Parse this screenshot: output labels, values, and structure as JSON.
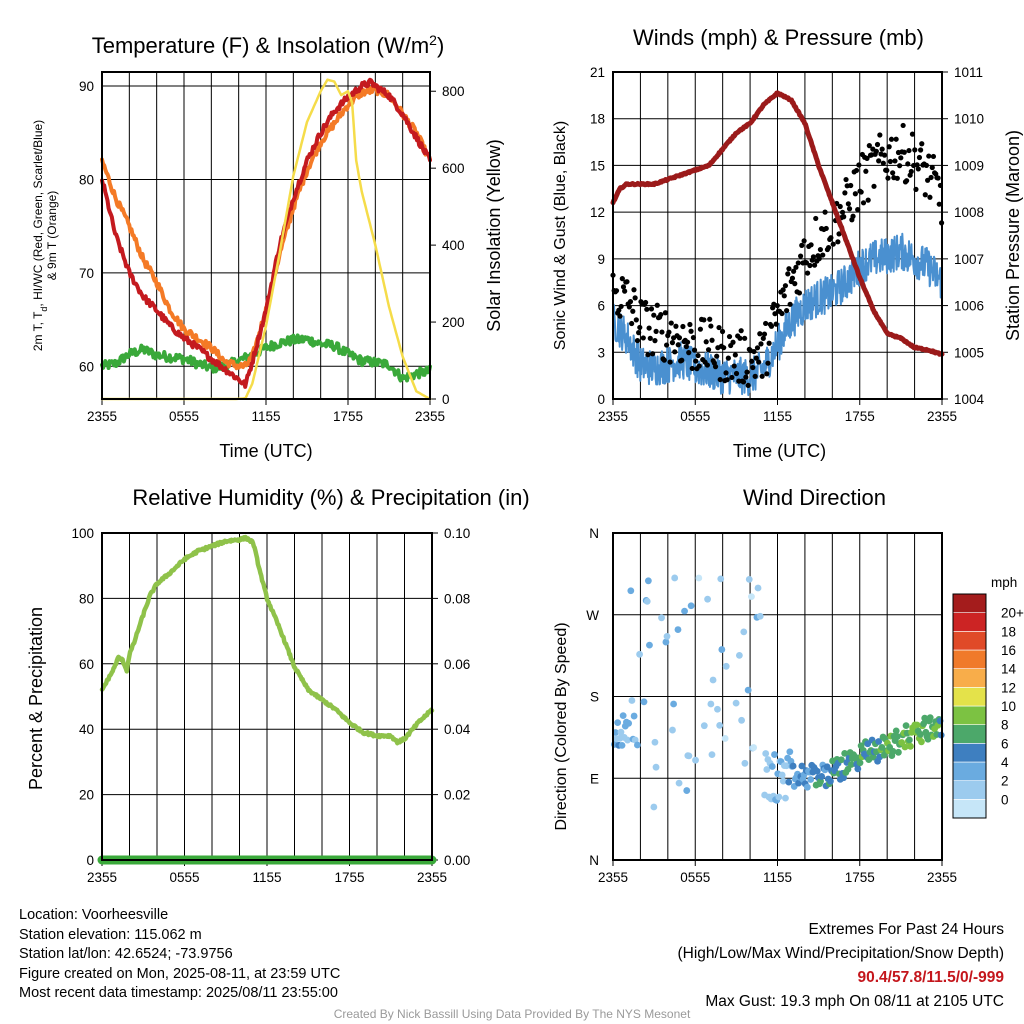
{
  "colors": {
    "red": "#c41a1f",
    "orange": "#f47a26",
    "green": "#3aa93a",
    "yellow": "#f5dc4a",
    "black": "#000000",
    "blue": "#4a90d0",
    "maroon": "#9b1a1a",
    "rh": "#8fc24a",
    "precip": "#3aa93a",
    "scale": [
      "#c6e6f8",
      "#9ccbee",
      "#6aabe0",
      "#3e7fc0",
      "#4ca86a",
      "#7cc242",
      "#e4e24a",
      "#f8ad4a",
      "#f07a2a",
      "#e04a28",
      "#cc2424",
      "#a41c1c"
    ]
  },
  "info": {
    "location": "Location: Voorheesville",
    "elevation": "Station elevation: 115.062 m",
    "latlon": "Station lat/lon: 42.6524; -73.9756",
    "created": "Figure created on Mon, 2025-08-11, at 23:59 UTC",
    "recent": "Most recent data timestamp: 2025/08/11 23:55:00"
  },
  "extremes": {
    "title": "Extremes For Past 24 Hours",
    "subtitle": "(High/Low/Max Wind/Precipitation/Snow Depth)",
    "values": "90.4/57.8/11.5/0/-999",
    "gust": "Max Gust: 19.3 mph On 08/11 at 2105 UTC"
  },
  "credit": "Created By Nick Bassill Using Data Provided By The NYS Mesonet",
  "chart_data": [
    {
      "id": "temp",
      "type": "line",
      "title": "Temperature (F) & Insolation (W/m",
      "title_sup": "2",
      "title_close": ")",
      "xlabel": "Time (UTC)",
      "ylabel_lines": [
        "2m T, T",
        "d",
        ", HI/WC (Red, Green, Scarlet/Blue)",
        "& 9m T (Orange)"
      ],
      "y2label": "Solar Insolation (Yellow)",
      "x_ticks": [
        "2355",
        "0555",
        "1155",
        "1755",
        "2355"
      ],
      "ylim": [
        56.5,
        91.5
      ],
      "y_ticks": [
        60,
        70,
        80,
        90
      ],
      "y2lim": [
        0,
        850
      ],
      "y2_ticks": [
        0,
        200,
        400,
        600,
        800
      ],
      "x_hours": [
        0,
        24
      ],
      "grid": true,
      "series": [
        {
          "axis": "y",
          "color_key": "green",
          "noise": 0.5,
          "values": [
            [
              0,
              60
            ],
            [
              1,
              60.3
            ],
            [
              2,
              61.3
            ],
            [
              3,
              61.8
            ],
            [
              4,
              61.2
            ],
            [
              5,
              61
            ],
            [
              6,
              60.8
            ],
            [
              7,
              60.3
            ],
            [
              8,
              59.8
            ],
            [
              9,
              60
            ],
            [
              10,
              60.6
            ],
            [
              11,
              61.2
            ],
            [
              12,
              62
            ],
            [
              13,
              62.5
            ],
            [
              14,
              62.8
            ],
            [
              15,
              62.9
            ],
            [
              16,
              62.4
            ],
            [
              17,
              62.2
            ],
            [
              18,
              61.3
            ],
            [
              19,
              60.6
            ],
            [
              20,
              60.4
            ],
            [
              21,
              60.2
            ],
            [
              22,
              58.7
            ],
            [
              23,
              59.2
            ],
            [
              24,
              59.5
            ]
          ]
        },
        {
          "axis": "y",
          "color_key": "orange",
          "noise": 0.4,
          "values": [
            [
              0,
              82
            ],
            [
              1,
              78
            ],
            [
              2,
              75
            ],
            [
              3,
              71.5
            ],
            [
              4,
              69
            ],
            [
              5,
              66
            ],
            [
              6,
              64
            ],
            [
              7,
              63
            ],
            [
              8,
              62
            ],
            [
              9,
              60.5
            ],
            [
              10,
              60
            ],
            [
              10.5,
              60
            ],
            [
              11,
              61
            ],
            [
              12,
              66
            ],
            [
              13,
              72
            ],
            [
              14,
              77
            ],
            [
              15,
              81
            ],
            [
              16,
              84
            ],
            [
              17,
              86
            ],
            [
              18,
              88
            ],
            [
              19,
              89.3
            ],
            [
              20,
              89.6
            ],
            [
              21,
              89
            ],
            [
              22,
              87
            ],
            [
              23,
              85
            ],
            [
              24,
              82
            ]
          ]
        },
        {
          "axis": "y",
          "color_key": "red",
          "noise": 0.35,
          "values": [
            [
              0,
              80
            ],
            [
              1,
              74
            ],
            [
              2,
              70
            ],
            [
              3,
              67.5
            ],
            [
              4,
              66
            ],
            [
              5,
              64.3
            ],
            [
              6,
              63
            ],
            [
              7,
              62
            ],
            [
              8,
              60.8
            ],
            [
              9,
              59.7
            ],
            [
              10,
              58.6
            ],
            [
              10.5,
              58
            ],
            [
              11,
              60.5
            ],
            [
              12,
              66
            ],
            [
              13,
              73
            ],
            [
              14,
              78
            ],
            [
              15,
              82
            ],
            [
              16,
              85
            ],
            [
              17,
              87.3
            ],
            [
              18,
              88.8
            ],
            [
              19,
              90
            ],
            [
              19.7,
              90.4
            ],
            [
              20,
              90
            ],
            [
              21,
              89
            ],
            [
              22,
              87
            ],
            [
              23,
              84.5
            ],
            [
              24,
              82
            ]
          ]
        },
        {
          "axis": "y2",
          "color_key": "yellow",
          "noise": 0,
          "values": [
            [
              0,
              0
            ],
            [
              9.8,
              0
            ],
            [
              10.5,
              2
            ],
            [
              11,
              40
            ],
            [
              12,
              190
            ],
            [
              13,
              380
            ],
            [
              14,
              580
            ],
            [
              15,
              720
            ],
            [
              16,
              800
            ],
            [
              16.5,
              830
            ],
            [
              17,
              825
            ],
            [
              17.5,
              790
            ],
            [
              18,
              800
            ],
            [
              18.3,
              770
            ],
            [
              18.6,
              620
            ],
            [
              19,
              540
            ],
            [
              20,
              400
            ],
            [
              21,
              240
            ],
            [
              22,
              110
            ],
            [
              23,
              20
            ],
            [
              24,
              0
            ]
          ]
        }
      ]
    },
    {
      "id": "wind",
      "type": "scatter",
      "title": "Winds (mph) & Pressure (mb)",
      "xlabel": "Time (UTC)",
      "ylabel": "Sonic Wind & Gust (Blue, Black)",
      "y2label": "Station Pressure (Maroon)",
      "x_ticks": [
        "2355",
        "0555",
        "1155",
        "1755",
        "2355"
      ],
      "ylim": [
        0,
        21
      ],
      "y_ticks": [
        0,
        3,
        6,
        9,
        12,
        15,
        18,
        21
      ],
      "y2lim": [
        1004,
        1011
      ],
      "y2_ticks": [
        1004,
        1005,
        1006,
        1007,
        1008,
        1009,
        1010,
        1011
      ],
      "x_hours": [
        0,
        24
      ],
      "grid": true,
      "series": [
        {
          "axis": "y2",
          "kind": "line",
          "color_key": "maroon",
          "noise": 0.015,
          "values": [
            [
              0,
              1008.2
            ],
            [
              0.5,
              1008.5
            ],
            [
              1,
              1008.6
            ],
            [
              2,
              1008.6
            ],
            [
              3,
              1008.6
            ],
            [
              4,
              1008.7
            ],
            [
              5,
              1008.8
            ],
            [
              6,
              1008.9
            ],
            [
              7,
              1009.0
            ],
            [
              8,
              1009.35
            ],
            [
              9,
              1009.7
            ],
            [
              10,
              1009.9
            ],
            [
              11,
              1010.3
            ],
            [
              12,
              1010.55
            ],
            [
              13,
              1010.4
            ],
            [
              14,
              1009.9
            ],
            [
              15,
              1009.0
            ],
            [
              16,
              1008.2
            ],
            [
              17,
              1007.4
            ],
            [
              18,
              1006.6
            ],
            [
              19,
              1005.9
            ],
            [
              20,
              1005.4
            ],
            [
              21,
              1005.3
            ],
            [
              22,
              1005.1
            ],
            [
              23,
              1005.05
            ],
            [
              24,
              1004.95
            ]
          ]
        },
        {
          "axis": "y",
          "kind": "wind",
          "color_key": "blue",
          "noise": 1.2,
          "values": [
            [
              0,
              5
            ],
            [
              1,
              4
            ],
            [
              2,
              2.2
            ],
            [
              3,
              2
            ],
            [
              4,
              2.2
            ],
            [
              5,
              2.5
            ],
            [
              6,
              2
            ],
            [
              7,
              1.8
            ],
            [
              8,
              1.5
            ],
            [
              9,
              1.5
            ],
            [
              10,
              1.4
            ],
            [
              11,
              2
            ],
            [
              12,
              3.5
            ],
            [
              13,
              5
            ],
            [
              14,
              6
            ],
            [
              15,
              6.5
            ],
            [
              16,
              6.8
            ],
            [
              17,
              7.5
            ],
            [
              18,
              8.5
            ],
            [
              19,
              9
            ],
            [
              20,
              9.2
            ],
            [
              21,
              9.5
            ],
            [
              22,
              9
            ],
            [
              23,
              8.5
            ],
            [
              24,
              7.5
            ]
          ]
        },
        {
          "axis": "y",
          "kind": "gust",
          "color_key": "black",
          "noise": 1.8,
          "values": [
            [
              0,
              6.5
            ],
            [
              1,
              6
            ],
            [
              2,
              4.5
            ],
            [
              3,
              4
            ],
            [
              4,
              3.8
            ],
            [
              5,
              3.5
            ],
            [
              6,
              3
            ],
            [
              7,
              3
            ],
            [
              8,
              2.5
            ],
            [
              9,
              2.3
            ],
            [
              10,
              2.2
            ],
            [
              11,
              2.5
            ],
            [
              12,
              5
            ],
            [
              13,
              7
            ],
            [
              14,
              9
            ],
            [
              15,
              10
            ],
            [
              16,
              11
            ],
            [
              17,
              12
            ],
            [
              18,
              13.5
            ],
            [
              19,
              14.5
            ],
            [
              20,
              15.2
            ],
            [
              21,
              15.5
            ],
            [
              22,
              15
            ],
            [
              23,
              14
            ],
            [
              24,
              12.5
            ]
          ]
        }
      ]
    },
    {
      "id": "rh",
      "type": "line",
      "title": "Relative Humidity (%) & Precipitation (in)",
      "ylabel": "Percent & Precipitation",
      "x_ticks": [
        "2355",
        "0555",
        "1155",
        "1755",
        "2355"
      ],
      "ylim": [
        0,
        100
      ],
      "y_ticks": [
        0,
        20,
        40,
        60,
        80,
        100
      ],
      "y2lim": [
        0,
        0.1
      ],
      "y2_ticks": [
        "0.00",
        "0.02",
        "0.04",
        "0.06",
        "0.08",
        "0.10"
      ],
      "x_hours": [
        0,
        24
      ],
      "grid": true,
      "series": [
        {
          "axis": "y",
          "color_key": "rh",
          "noise": 0.4,
          "values": [
            [
              0,
              52
            ],
            [
              0.8,
              58
            ],
            [
              1.2,
              62
            ],
            [
              1.5,
              61
            ],
            [
              1.8,
              58
            ],
            [
              2,
              63
            ],
            [
              2.3,
              66
            ],
            [
              2.6,
              70
            ],
            [
              3,
              75
            ],
            [
              3.5,
              81
            ],
            [
              4,
              84.5
            ],
            [
              5,
              88
            ],
            [
              6,
              92
            ],
            [
              7,
              94.5
            ],
            [
              8,
              96
            ],
            [
              9,
              97.5
            ],
            [
              10,
              98
            ],
            [
              10.5,
              98.5
            ],
            [
              11,
              97
            ],
            [
              11.5,
              88
            ],
            [
              12,
              80
            ],
            [
              13,
              70
            ],
            [
              14,
              59
            ],
            [
              15,
              52
            ],
            [
              16,
              49
            ],
            [
              17,
              46
            ],
            [
              18,
              42
            ],
            [
              19,
              39
            ],
            [
              20,
              38
            ],
            [
              21,
              38
            ],
            [
              21.5,
              36
            ],
            [
              22,
              37
            ],
            [
              23,
              42
            ],
            [
              24,
              46
            ]
          ]
        },
        {
          "axis": "y2",
          "color_key": "precip",
          "noise": 0,
          "values": [
            [
              0,
              0
            ],
            [
              24,
              0
            ]
          ]
        }
      ]
    },
    {
      "id": "wdir",
      "type": "scatter",
      "title": "Wind Direction",
      "ylabel": "Direction (Colored By Speed)",
      "x_ticks": [
        "2355",
        "0555",
        "1155",
        "1755",
        "2355"
      ],
      "y_ticks": [
        "N",
        "E",
        "S",
        "W",
        "N"
      ],
      "ylim": [
        0,
        360
      ],
      "x_hours": [
        0,
        24
      ],
      "grid": true,
      "colorbar": {
        "title": "mph",
        "labels": [
          "0",
          "2",
          "4",
          "6",
          "8",
          "10",
          "12",
          "14",
          "16",
          "18",
          "20+"
        ]
      }
    }
  ]
}
